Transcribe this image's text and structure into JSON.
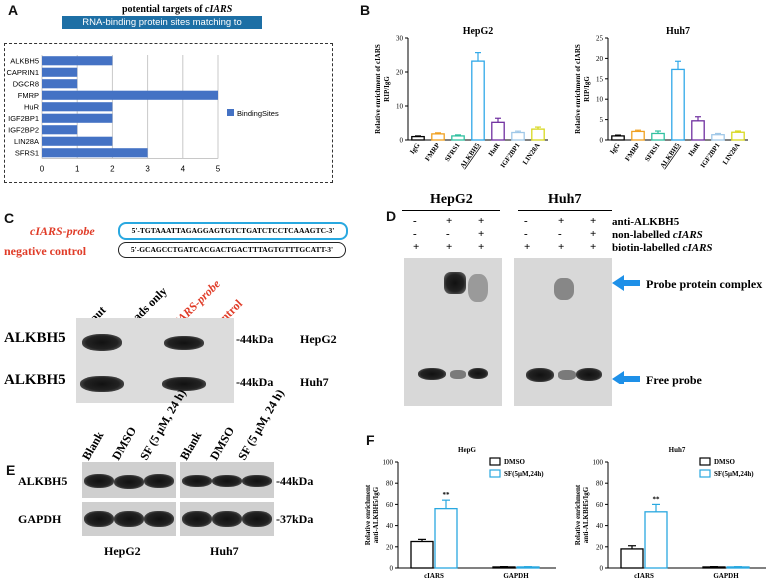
{
  "panelA": {
    "letter": "A",
    "title_prefix": "potential targets of ",
    "title_italic": "cIARS",
    "banner": "RNA-binding protein sites matching to circRNAs",
    "legend": "BindingSites",
    "bar_color": "#4472c4",
    "chart_data": {
      "type": "bar",
      "orientation": "horizontal",
      "categories": [
        "ALKBH5",
        "CAPRIN1",
        "DGCR8",
        "FMRP",
        "HuR",
        "IGF2BP1",
        "IGF2BP2",
        "LIN28A",
        "SFRS1"
      ],
      "values": [
        2,
        1,
        1,
        5,
        2,
        2,
        1,
        2,
        3
      ],
      "xticks": [
        "0",
        "1",
        "2",
        "3",
        "4",
        "5"
      ],
      "xlim": [
        0,
        5
      ],
      "grid": true,
      "legend_placement": "right"
    }
  },
  "panelB": {
    "letter": "B",
    "ylabel_line1": "Relative enrichment of cIARS",
    "ylabel_line2": "RIP/IgG",
    "chart_data": [
      {
        "type": "bar",
        "title": "HepG2",
        "categories": [
          "IgG",
          "FMRP",
          "SFRS1",
          "ALKBH5",
          "HuR",
          "IGF2BP1",
          "LIN28A"
        ],
        "values": [
          1.0,
          1.8,
          1.2,
          23.2,
          5.2,
          2.2,
          3.2
        ],
        "errors": [
          0.2,
          0.3,
          0.3,
          2.5,
          1.2,
          0.4,
          0.6
        ],
        "colors": [
          "#000000",
          "#f0a020",
          "#30c0a0",
          "#30a8e8",
          "#7030a0",
          "#a0c8e8",
          "#d8d820"
        ],
        "yticks": [
          "0",
          "10",
          "20",
          "30"
        ],
        "ylim": [
          0,
          30
        ]
      },
      {
        "type": "bar",
        "title": "Huh7",
        "categories": [
          "IgG",
          "FMRP",
          "SFRS1",
          "ALKBH5",
          "HuR",
          "IGF2BP1",
          "LIN28A"
        ],
        "values": [
          1.0,
          2.1,
          1.6,
          17.3,
          4.7,
          1.3,
          1.9
        ],
        "errors": [
          0.2,
          0.3,
          0.6,
          2.0,
          1.0,
          0.3,
          0.3
        ],
        "colors": [
          "#000000",
          "#f0a020",
          "#30c0a0",
          "#30a8e8",
          "#7030a0",
          "#a0c8e8",
          "#d8d820"
        ],
        "yticks": [
          "0",
          "5",
          "10",
          "15",
          "20",
          "25"
        ],
        "ylim": [
          0,
          25
        ]
      }
    ]
  },
  "panelC": {
    "letter": "C",
    "probe_label": "cIARS-probe",
    "probe_seq": "5'-TGTAAATTAGAGGAGTGTCTGATCTCCTCAAAGTC-3'",
    "neg_label": "negative control",
    "neg_seq": "5'-GCAGCCTGATCACGACTGACTTTAGTGTTTGCATT-3'",
    "lanes": [
      "input",
      "beads only",
      "cIARS-probe",
      "control"
    ],
    "rows": [
      {
        "protein": "ALKBH5",
        "size": "-44kDa",
        "cell": "HepG2"
      },
      {
        "protein": "ALKBH5",
        "size": "-44kDa",
        "cell": "Huh7"
      }
    ],
    "red": "#e03c28",
    "probe_box_color": "#29a8e0"
  },
  "panelD": {
    "letter": "D",
    "cells": [
      "HepG2",
      "Huh7"
    ],
    "row_labels": [
      "anti-ALKBH5",
      "non-labelled ",
      "biotin-labelled "
    ],
    "italic": "cIARS",
    "signs": [
      [
        "-",
        "+",
        "+"
      ],
      [
        "-",
        "-",
        "+"
      ],
      [
        "+",
        "+",
        "+"
      ]
    ],
    "complex_label": "Probe protein complex",
    "free_label": "Free probe",
    "arrow_color": "#1e90e8"
  },
  "panelE": {
    "letter": "E",
    "lanes": [
      "Blank",
      "DMSO",
      "SF (5 μM, 24 h)",
      "Blank",
      "DMSO",
      "SF (5 μM, 24 h)"
    ],
    "rows": [
      {
        "protein": "ALKBH5",
        "size": "-44kDa"
      },
      {
        "protein": "GAPDH",
        "size": "-37kDa"
      }
    ],
    "cells": [
      "HepG2",
      "Huh7"
    ]
  },
  "panelF": {
    "letter": "F",
    "ylabel_line1": "Relative enrichment",
    "ylabel_line2": "anti-ALKBH5/IgG",
    "legend": [
      "DMSO",
      "SF(5μM,24h)"
    ],
    "chart_data": [
      {
        "type": "bar",
        "title": "HepG",
        "categories": [
          "cIARS",
          "GAPDH"
        ],
        "series": [
          {
            "name": "DMSO",
            "values": [
              25,
              1
            ],
            "errors": [
              2,
              0.3
            ],
            "color": "#000000"
          },
          {
            "name": "SF(5μM,24h)",
            "values": [
              56,
              1
            ],
            "errors": [
              8,
              0.3
            ],
            "color": "#29a8e0"
          }
        ],
        "yticks": [
          "0",
          "20",
          "40",
          "60",
          "80",
          "100"
        ],
        "ylim": [
          0,
          100
        ],
        "annotation": "**"
      },
      {
        "type": "bar",
        "title": "Huh7",
        "categories": [
          "cIARS",
          "GAPDH"
        ],
        "series": [
          {
            "name": "DMSO",
            "values": [
              18,
              1
            ],
            "errors": [
              3,
              0.3
            ],
            "color": "#000000"
          },
          {
            "name": "SF(5μM,24h)",
            "values": [
              53,
              1
            ],
            "errors": [
              7,
              0.3
            ],
            "color": "#29a8e0"
          }
        ],
        "yticks": [
          "0",
          "20",
          "40",
          "60",
          "80",
          "100"
        ],
        "ylim": [
          0,
          100
        ],
        "annotation": "**"
      }
    ]
  }
}
